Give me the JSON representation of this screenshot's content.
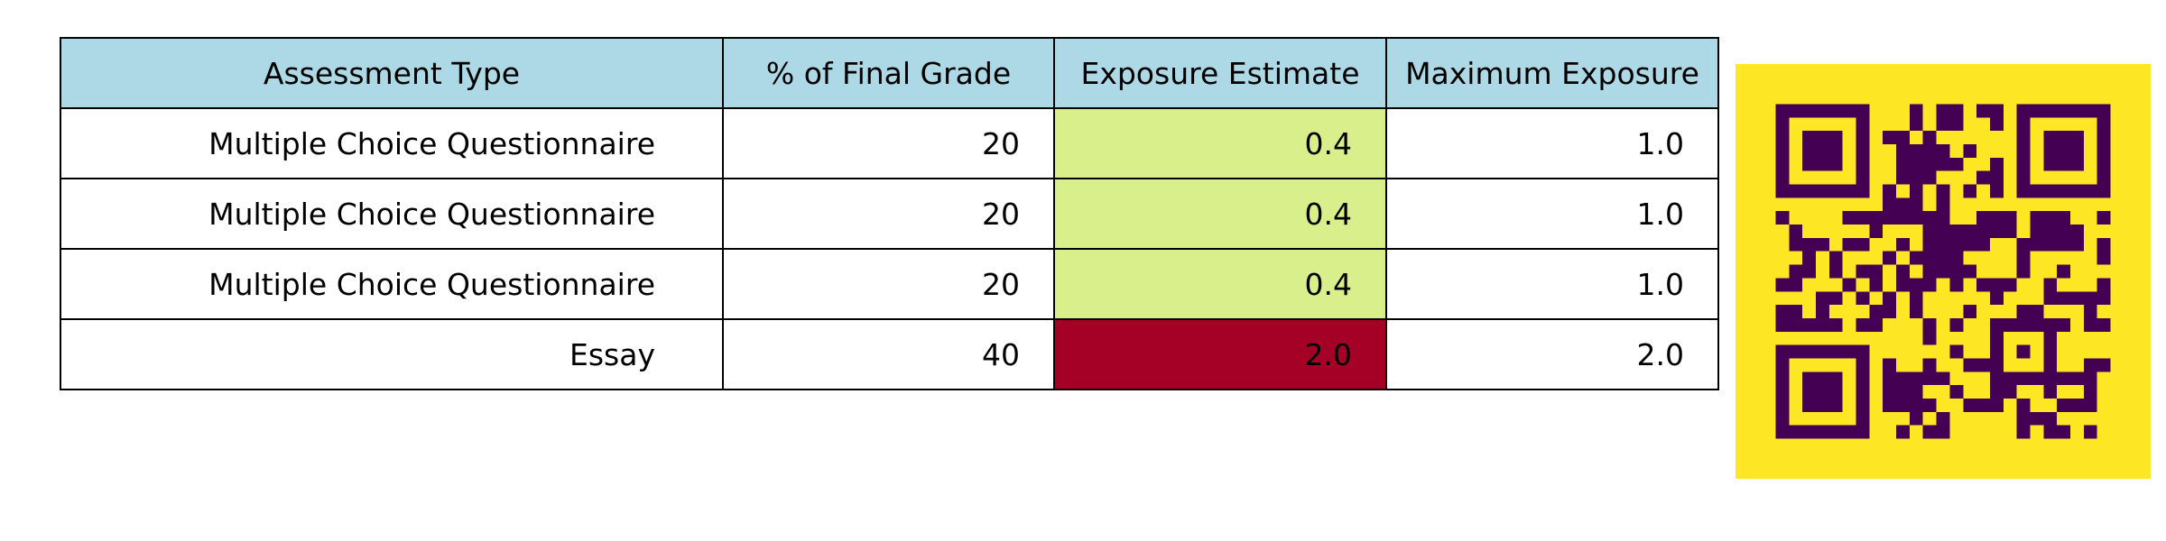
{
  "chart_data": {
    "type": "table",
    "header_color": "#add8e6",
    "columns": [
      "Assessment Type",
      "% of Final Grade",
      "Exposure Estimate",
      "Maximum Exposure"
    ],
    "rows": [
      {
        "assessment_type": "Multiple Choice Questionnaire",
        "percent_of_final_grade": "20",
        "exposure_estimate": "0.4",
        "maximum_exposure": "1.0",
        "exposure_color": "#d9ef8b"
      },
      {
        "assessment_type": "Multiple Choice Questionnaire",
        "percent_of_final_grade": "20",
        "exposure_estimate": "0.4",
        "maximum_exposure": "1.0",
        "exposure_color": "#d9ef8b"
      },
      {
        "assessment_type": "Multiple Choice Questionnaire",
        "percent_of_final_grade": "20",
        "exposure_estimate": "0.4",
        "maximum_exposure": "1.0",
        "exposure_color": "#d9ef8b"
      },
      {
        "assessment_type": "Essay",
        "percent_of_final_grade": "40",
        "exposure_estimate": "2.0",
        "maximum_exposure": "2.0",
        "exposure_color": "#a50026"
      }
    ]
  },
  "qr_code": {
    "background_color": "#fde725",
    "module_color": "#440154"
  }
}
